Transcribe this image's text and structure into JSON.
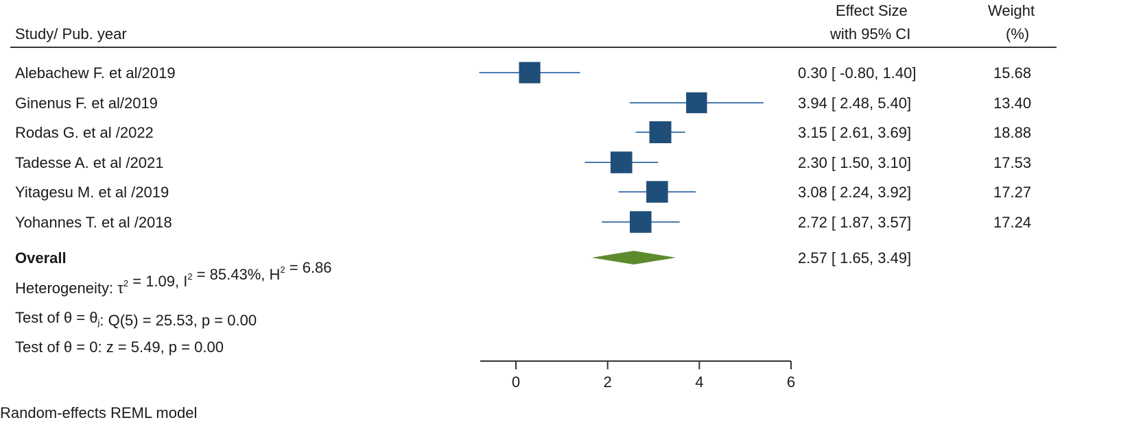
{
  "chart_data": {
    "type": "forest",
    "headers": {
      "study": "Study/ Pub. year",
      "effect_line1": "Effect Size",
      "effect_line2": "with 95% CI",
      "weight_line1": "Weight",
      "weight_line2": "(%)"
    },
    "studies": [
      {
        "name": "Alebachew F. et al/2019",
        "es": 0.3,
        "lo": -0.8,
        "hi": 1.4,
        "weight": 15.68,
        "ci_text": "0.30 [  -0.80,  1.40]",
        "weight_text": "15.68"
      },
      {
        "name": "Ginenus F. et al/2019",
        "es": 3.94,
        "lo": 2.48,
        "hi": 5.4,
        "weight": 13.4,
        "ci_text": "3.94 [    2.48,  5.40]",
        "weight_text": "13.40"
      },
      {
        "name": "Rodas G. et al /2022",
        "es": 3.15,
        "lo": 2.61,
        "hi": 3.69,
        "weight": 18.88,
        "ci_text": "3.15 [    2.61,  3.69]",
        "weight_text": "18.88"
      },
      {
        "name": "Tadesse A. et al /2021",
        "es": 2.3,
        "lo": 1.5,
        "hi": 3.1,
        "weight": 17.53,
        "ci_text": "2.30 [    1.50,  3.10]",
        "weight_text": "17.53"
      },
      {
        "name": "Yitagesu M. et al /2019",
        "es": 3.08,
        "lo": 2.24,
        "hi": 3.92,
        "weight": 17.27,
        "ci_text": "3.08 [    2.24,  3.92]",
        "weight_text": "17.27"
      },
      {
        "name": "Yohannes T. et al /2018",
        "es": 2.72,
        "lo": 1.87,
        "hi": 3.57,
        "weight": 17.24,
        "ci_text": "2.72 [    1.87,  3.57]",
        "weight_text": "17.24"
      }
    ],
    "overall": {
      "label": "Overall",
      "es": 2.57,
      "lo": 1.65,
      "hi": 3.49,
      "ci_text": "2.57 [    1.65,  3.49]"
    },
    "stats": {
      "heterogeneity": {
        "prefix": "Heterogeneity: τ",
        "sup1": "2",
        "mid1": " = 1.09, I",
        "sup2": "2",
        "mid2": " = 85.43%, H",
        "sup3": "2",
        "end": " = 6.86"
      },
      "test_theta_i": {
        "prefix": "Test of θ = θ",
        "sub": "j",
        "end": ": Q(5) = 25.53, p = 0.00"
      },
      "test_theta_0": "Test of θ = 0: z = 5.49, p = 0.00"
    },
    "xaxis": {
      "ticks": [
        0,
        2,
        4,
        6
      ],
      "range": [
        -0.8,
        6
      ]
    },
    "footer": "Random-effects REML model",
    "colors": {
      "marker": "#1f4e79",
      "ci_line": "#4a7ab0",
      "diamond": "#5e8a2e",
      "rule": "#333333"
    }
  }
}
